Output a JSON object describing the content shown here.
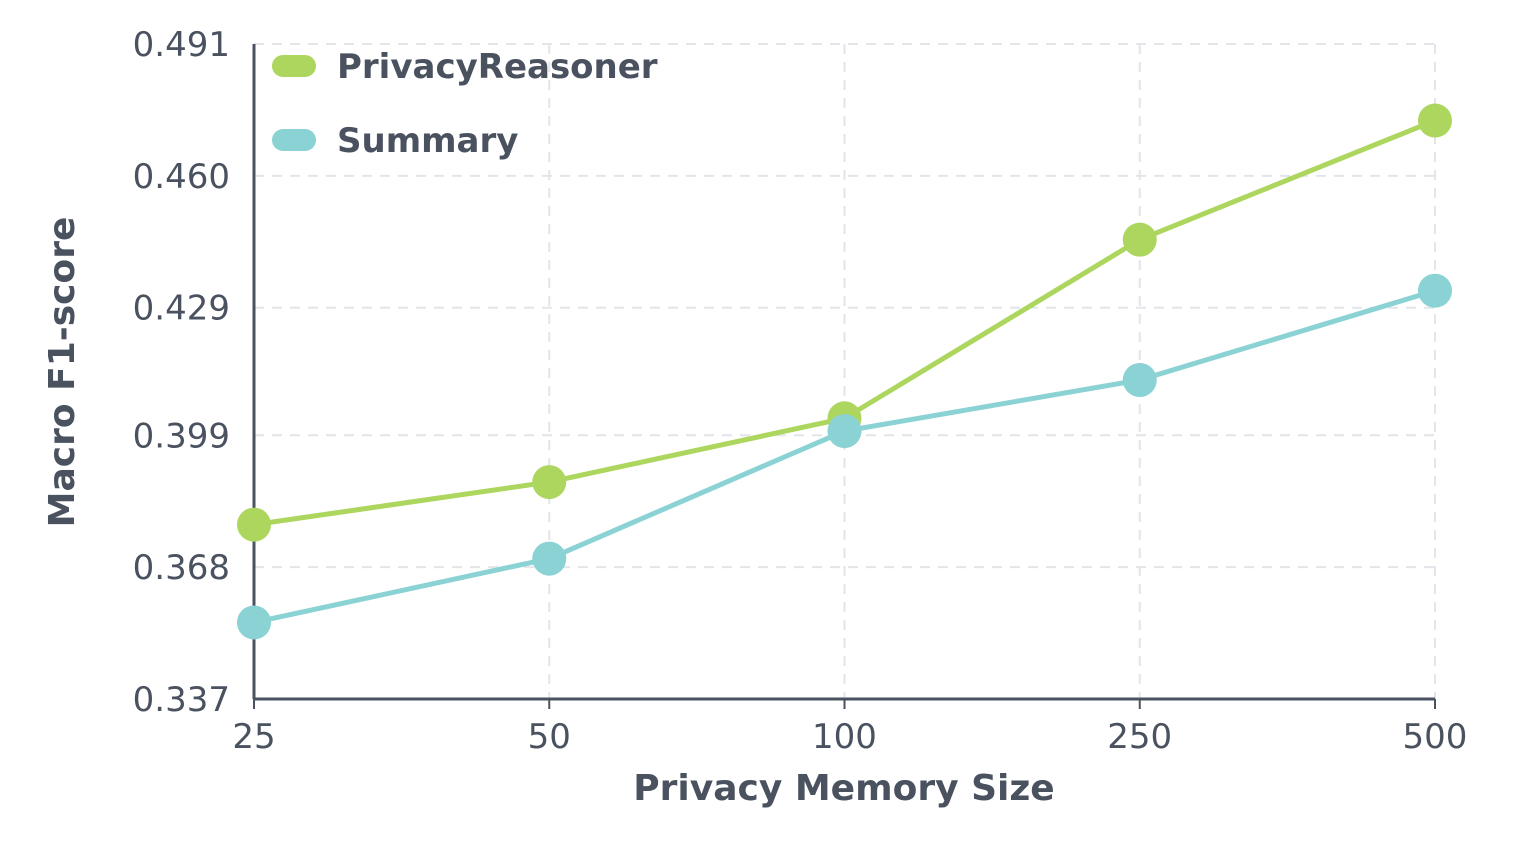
{
  "chart_data": {
    "type": "line",
    "title": "",
    "xlabel": "Privacy Memory Size",
    "ylabel": "Macro F1-score",
    "categories": [
      "25",
      "50",
      "100",
      "250",
      "500"
    ],
    "yticks": [
      "0.337",
      "0.368",
      "0.399",
      "0.429",
      "0.460",
      "0.491"
    ],
    "ylim": [
      0.337,
      0.491
    ],
    "grid": true,
    "legend_position": "upper left",
    "series": [
      {
        "name": "PrivacyReasoner",
        "color": "#acd65e",
        "values": [
          0.378,
          0.388,
          0.403,
          0.445,
          0.473
        ]
      },
      {
        "name": "Summary",
        "color": "#8ad2d4",
        "values": [
          0.355,
          0.37,
          0.4,
          0.412,
          0.433
        ]
      }
    ]
  },
  "colors": {
    "axis": "#4a5260",
    "grid": "#e2e5ea",
    "text": "#4a5260"
  }
}
